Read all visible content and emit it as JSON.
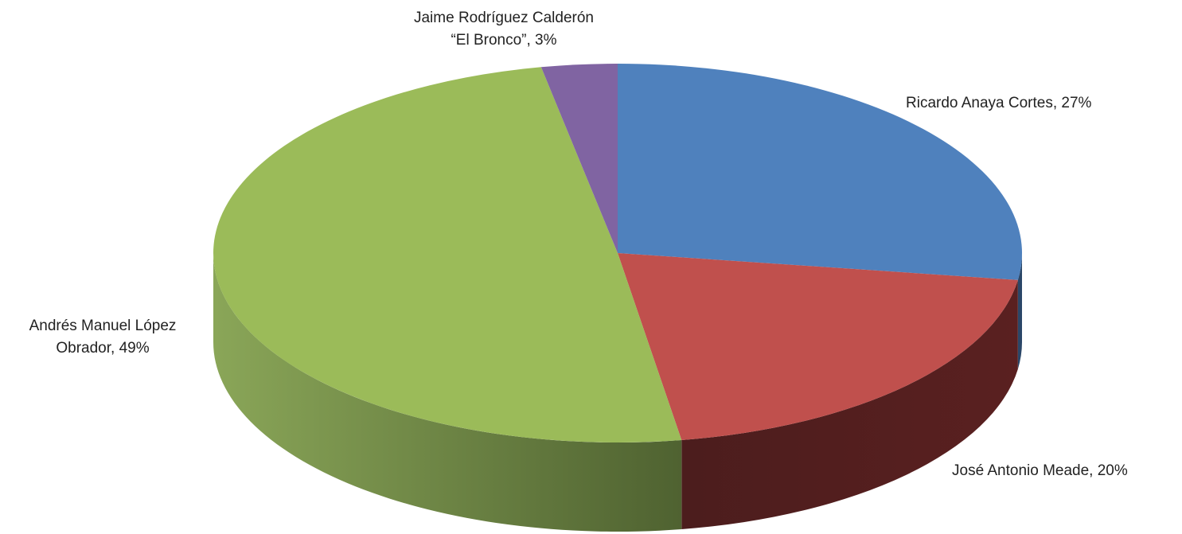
{
  "chart_data": {
    "type": "pie",
    "title": "",
    "style": "3d",
    "slices": [
      {
        "label_lines": [
          "Ricardo Anaya Cortes, 27%"
        ],
        "name": "Ricardo Anaya Cortes",
        "value": 27,
        "value_label": "27%",
        "color": "#4F81BD"
      },
      {
        "label_lines": [
          "José Antonio Meade, 20%"
        ],
        "name": "José Antonio Meade",
        "value": 20,
        "value_label": "20%",
        "color": "#C0504D"
      },
      {
        "label_lines": [
          "Andrés Manuel López",
          "Obrador, 49%"
        ],
        "name": "Andrés Manuel López Obrador",
        "value": 49,
        "value_label": "49%",
        "color": "#9BBB59"
      },
      {
        "label_lines": [
          "Jaime Rodríguez Calderón",
          "“El Bronco”, 3%"
        ],
        "name": "Jaime Rodríguez Calderón “El Bronco”",
        "value": 3,
        "value_label": "3%",
        "color": "#8064A2"
      }
    ]
  }
}
